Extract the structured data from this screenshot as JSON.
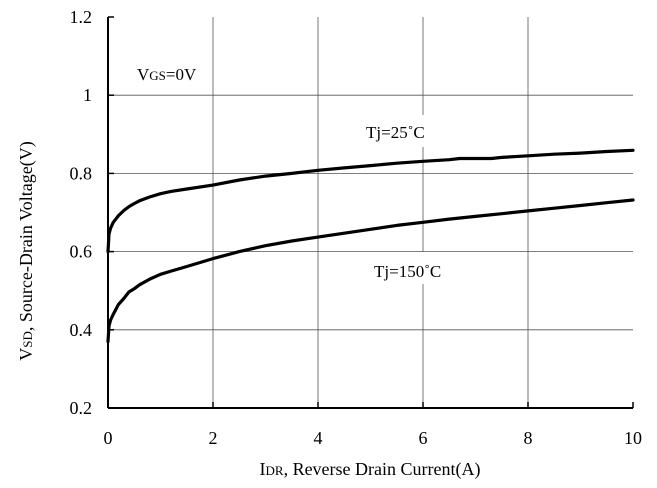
{
  "chart_data": {
    "type": "line",
    "title": "",
    "xlabel": {
      "prefix": "I",
      "sub": "DR",
      "rest": ", Reverse Drain Current(A)"
    },
    "ylabel": {
      "prefix": "V",
      "sub": "SD",
      "rest": ", Source-Drain Voltage(V)"
    },
    "xlim": [
      0,
      10
    ],
    "ylim": [
      0.2,
      1.2
    ],
    "xticks": [
      0,
      2,
      4,
      6,
      8,
      10
    ],
    "xtick_labels": [
      "0",
      "2",
      "4",
      "6",
      "8",
      "10"
    ],
    "yticks": [
      0.2,
      0.4,
      0.6,
      0.8,
      1.0,
      1.2
    ],
    "ytick_labels": [
      "0.2",
      "0.4",
      "0.6",
      "0.8",
      "1",
      "1.2"
    ],
    "grid": true,
    "annotations": {
      "vgs": {
        "prefix": "V",
        "sub": "GS",
        "rest": "=0V"
      },
      "tj25": "Tj=25˚C",
      "tj150": "Tj=150˚C"
    },
    "series": [
      {
        "x": [
          0,
          0.02,
          0.05,
          0.1,
          0.2,
          0.3,
          0.4,
          0.5,
          0.6,
          0.8,
          1.0,
          1.2,
          1.5,
          2.0,
          2.5,
          3.0,
          3.5,
          4.0,
          4.5,
          5.0,
          5.5,
          6.0,
          6.5,
          6.7,
          7.0,
          7.3,
          7.5,
          8.0,
          8.5,
          9.0,
          9.5,
          10.0
        ],
        "y": [
          0.6,
          0.645,
          0.66,
          0.675,
          0.692,
          0.705,
          0.715,
          0.723,
          0.73,
          0.74,
          0.748,
          0.754,
          0.76,
          0.77,
          0.783,
          0.793,
          0.8,
          0.808,
          0.814,
          0.82,
          0.826,
          0.831,
          0.835,
          0.838,
          0.838,
          0.838,
          0.841,
          0.845,
          0.849,
          0.852,
          0.856,
          0.859
        ]
      },
      {
        "x": [
          0,
          0.02,
          0.05,
          0.1,
          0.2,
          0.3,
          0.4,
          0.5,
          0.6,
          0.8,
          1.0,
          1.2,
          1.5,
          2.0,
          2.5,
          3.0,
          3.5,
          4.0,
          4.5,
          5.0,
          5.5,
          6.0,
          6.5,
          7.0,
          7.5,
          8.0,
          8.5,
          9.0,
          9.5,
          10.0
        ],
        "y": [
          0.37,
          0.41,
          0.425,
          0.44,
          0.465,
          0.48,
          0.497,
          0.505,
          0.515,
          0.53,
          0.542,
          0.55,
          0.562,
          0.582,
          0.6,
          0.615,
          0.627,
          0.637,
          0.647,
          0.657,
          0.667,
          0.675,
          0.683,
          0.69,
          0.697,
          0.704,
          0.711,
          0.718,
          0.725,
          0.732
        ]
      }
    ]
  }
}
